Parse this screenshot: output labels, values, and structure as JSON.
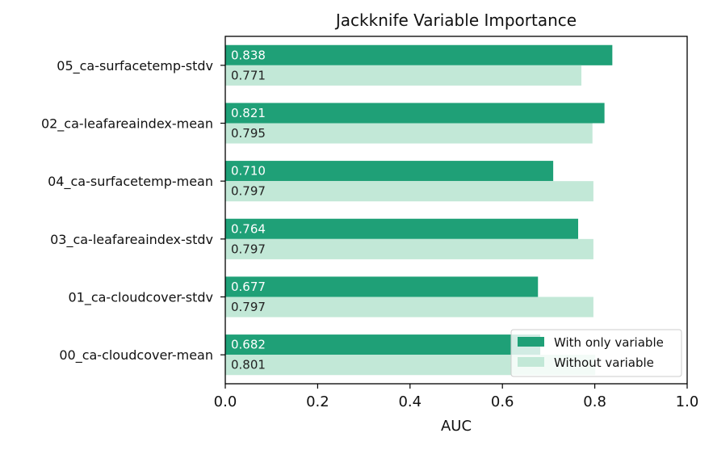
{
  "chart_data": {
    "type": "bar",
    "orientation": "horizontal",
    "title": "Jackknife Variable Importance",
    "xlabel": "AUC",
    "ylabel": "",
    "xlim": [
      0,
      1
    ],
    "xticks": [
      "0.0",
      "0.2",
      "0.4",
      "0.6",
      "0.8",
      "1.0"
    ],
    "categories": [
      "05_ca-surfacetemp-stdv",
      "02_ca-leafareaindex-mean",
      "04_ca-surfacetemp-mean",
      "03_ca-leafareaindex-stdv",
      "01_ca-cloudcover-stdv",
      "00_ca-cloudcover-mean"
    ],
    "series": [
      {
        "name": "With only variable",
        "color": "#1fa077",
        "label_color": "#ffffff",
        "values": [
          0.838,
          0.821,
          0.71,
          0.764,
          0.677,
          0.682
        ],
        "labels": [
          "0.838",
          "0.821",
          "0.710",
          "0.764",
          "0.677",
          "0.682"
        ]
      },
      {
        "name": "Without variable",
        "color": "#c2e8d7",
        "label_color": "#222222",
        "values": [
          0.771,
          0.795,
          0.797,
          0.797,
          0.797,
          0.801
        ],
        "labels": [
          "0.771",
          "0.795",
          "0.797",
          "0.797",
          "0.797",
          "0.801"
        ]
      }
    ],
    "legend_position": "lower-right",
    "grid": false
  }
}
